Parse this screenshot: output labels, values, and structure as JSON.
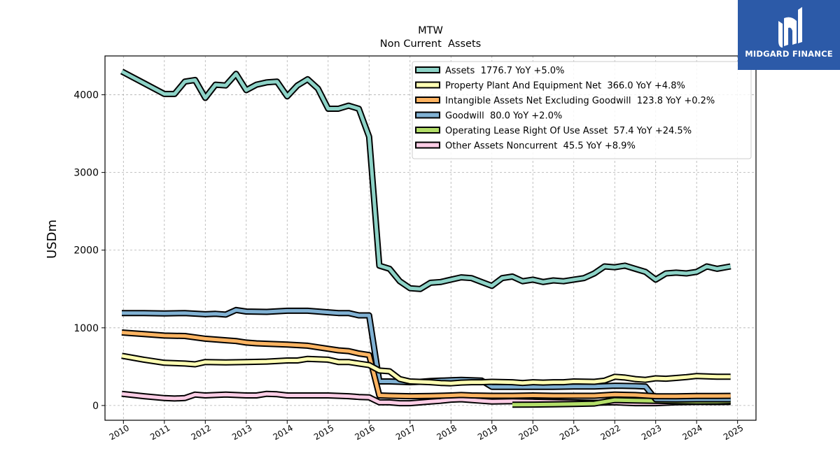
{
  "logo": {
    "brand": "MIDGARD FINANCE"
  },
  "chart_data": {
    "type": "line",
    "title": "MTW",
    "subtitle": "Non Current  Assets",
    "xlabel": "",
    "ylabel": "USDm",
    "xlim": [
      2009.55,
      2025.45
    ],
    "ylim": [
      -190,
      4500
    ],
    "xticks": [
      2010,
      2011,
      2012,
      2013,
      2014,
      2015,
      2016,
      2017,
      2018,
      2019,
      2020,
      2021,
      2022,
      2023,
      2024,
      2025
    ],
    "yticks": [
      0,
      1000,
      2000,
      3000,
      4000
    ],
    "grid": true,
    "legend_position": "top-right",
    "series": [
      {
        "name": "Assets  1776.7 YoY +5.0%",
        "color": "#8dd3c7",
        "points": [
          [
            2009.96,
            4300
          ],
          [
            2010.5,
            4150
          ],
          [
            2011.0,
            4010
          ],
          [
            2011.25,
            4010
          ],
          [
            2011.5,
            4170
          ],
          [
            2011.75,
            4190
          ],
          [
            2012.0,
            3960
          ],
          [
            2012.25,
            4130
          ],
          [
            2012.5,
            4120
          ],
          [
            2012.75,
            4270
          ],
          [
            2013.0,
            4060
          ],
          [
            2013.25,
            4130
          ],
          [
            2013.5,
            4160
          ],
          [
            2013.75,
            4170
          ],
          [
            2014.0,
            3980
          ],
          [
            2014.25,
            4120
          ],
          [
            2014.5,
            4200
          ],
          [
            2014.75,
            4080
          ],
          [
            2015.0,
            3820
          ],
          [
            2015.25,
            3820
          ],
          [
            2015.5,
            3860
          ],
          [
            2015.75,
            3820
          ],
          [
            2016.0,
            3460
          ],
          [
            2016.25,
            1800
          ],
          [
            2016.5,
            1760
          ],
          [
            2016.75,
            1600
          ],
          [
            2017.0,
            1510
          ],
          [
            2017.25,
            1500
          ],
          [
            2017.5,
            1580
          ],
          [
            2017.75,
            1590
          ],
          [
            2018.0,
            1620
          ],
          [
            2018.25,
            1650
          ],
          [
            2018.5,
            1640
          ],
          [
            2018.75,
            1590
          ],
          [
            2019.0,
            1540
          ],
          [
            2019.25,
            1640
          ],
          [
            2019.5,
            1660
          ],
          [
            2019.75,
            1600
          ],
          [
            2020.0,
            1620
          ],
          [
            2020.25,
            1590
          ],
          [
            2020.5,
            1610
          ],
          [
            2020.75,
            1600
          ],
          [
            2021.0,
            1620
          ],
          [
            2021.25,
            1640
          ],
          [
            2021.5,
            1700
          ],
          [
            2021.75,
            1790
          ],
          [
            2022.0,
            1780
          ],
          [
            2022.25,
            1800
          ],
          [
            2022.5,
            1760
          ],
          [
            2022.75,
            1720
          ],
          [
            2023.0,
            1620
          ],
          [
            2023.25,
            1700
          ],
          [
            2023.5,
            1710
          ],
          [
            2023.75,
            1700
          ],
          [
            2024.0,
            1720
          ],
          [
            2024.25,
            1790
          ],
          [
            2024.5,
            1760
          ],
          [
            2024.83,
            1790
          ]
        ]
      },
      {
        "name": "Property Plant And Equipment Net  366.0 YoY +4.8%",
        "color": "#ffffb3",
        "points": [
          [
            2009.96,
            640
          ],
          [
            2010.5,
            590
          ],
          [
            2011.0,
            550
          ],
          [
            2011.5,
            540
          ],
          [
            2011.75,
            530
          ],
          [
            2012.0,
            560
          ],
          [
            2012.5,
            555
          ],
          [
            2013.0,
            560
          ],
          [
            2013.5,
            565
          ],
          [
            2014.0,
            580
          ],
          [
            2014.25,
            580
          ],
          [
            2014.5,
            600
          ],
          [
            2015.0,
            590
          ],
          [
            2015.25,
            560
          ],
          [
            2015.5,
            560
          ],
          [
            2015.75,
            540
          ],
          [
            2016.0,
            520
          ],
          [
            2016.25,
            450
          ],
          [
            2016.5,
            440
          ],
          [
            2016.75,
            340
          ],
          [
            2017.0,
            310
          ],
          [
            2017.5,
            300
          ],
          [
            2017.75,
            290
          ],
          [
            2018.0,
            285
          ],
          [
            2018.25,
            295
          ],
          [
            2018.5,
            300
          ],
          [
            2018.75,
            300
          ],
          [
            2019.0,
            305
          ],
          [
            2019.5,
            300
          ],
          [
            2019.75,
            290
          ],
          [
            2020.0,
            300
          ],
          [
            2020.25,
            295
          ],
          [
            2020.5,
            300
          ],
          [
            2020.75,
            300
          ],
          [
            2021.0,
            310
          ],
          [
            2021.5,
            305
          ],
          [
            2021.75,
            320
          ],
          [
            2022.0,
            370
          ],
          [
            2022.25,
            360
          ],
          [
            2022.5,
            340
          ],
          [
            2022.75,
            330
          ],
          [
            2023.0,
            350
          ],
          [
            2023.25,
            345
          ],
          [
            2023.5,
            355
          ],
          [
            2023.75,
            365
          ],
          [
            2024.0,
            380
          ],
          [
            2024.25,
            375
          ],
          [
            2024.5,
            370
          ],
          [
            2024.83,
            370
          ]
        ]
      },
      {
        "name": "Intangible Assets Net Excluding Goodwill  123.8 YoY +0.2%",
        "color": "#fdb462",
        "points": [
          [
            2009.96,
            940
          ],
          [
            2010.5,
            920
          ],
          [
            2011.0,
            900
          ],
          [
            2011.5,
            895
          ],
          [
            2012.0,
            860
          ],
          [
            2012.25,
            850
          ],
          [
            2012.5,
            840
          ],
          [
            2012.75,
            830
          ],
          [
            2013.0,
            810
          ],
          [
            2013.25,
            800
          ],
          [
            2013.5,
            795
          ],
          [
            2014.0,
            785
          ],
          [
            2014.5,
            770
          ],
          [
            2015.0,
            730
          ],
          [
            2015.25,
            710
          ],
          [
            2015.5,
            700
          ],
          [
            2015.75,
            670
          ],
          [
            2016.0,
            650
          ],
          [
            2016.25,
            130
          ],
          [
            2016.5,
            125
          ],
          [
            2017.0,
            120
          ],
          [
            2017.5,
            122
          ],
          [
            2018.0,
            130
          ],
          [
            2018.25,
            135
          ],
          [
            2018.5,
            130
          ],
          [
            2019.0,
            125
          ],
          [
            2019.5,
            125
          ],
          [
            2020.0,
            130
          ],
          [
            2020.5,
            125
          ],
          [
            2021.0,
            125
          ],
          [
            2021.5,
            125
          ],
          [
            2022.0,
            140
          ],
          [
            2022.5,
            135
          ],
          [
            2023.0,
            120
          ],
          [
            2023.5,
            118
          ],
          [
            2024.0,
            122
          ],
          [
            2024.5,
            122
          ],
          [
            2024.83,
            124
          ]
        ]
      },
      {
        "name": "Goodwill  80.0 YoY +2.0%",
        "color": "#80b1d3",
        "points": [
          [
            2009.96,
            1190
          ],
          [
            2010.5,
            1190
          ],
          [
            2011.0,
            1185
          ],
          [
            2011.5,
            1190
          ],
          [
            2012.0,
            1175
          ],
          [
            2012.25,
            1180
          ],
          [
            2012.5,
            1170
          ],
          [
            2012.75,
            1230
          ],
          [
            2013.0,
            1210
          ],
          [
            2013.5,
            1205
          ],
          [
            2014.0,
            1220
          ],
          [
            2014.5,
            1220
          ],
          [
            2015.0,
            1200
          ],
          [
            2015.25,
            1190
          ],
          [
            2015.5,
            1190
          ],
          [
            2015.75,
            1160
          ],
          [
            2016.0,
            1160
          ],
          [
            2016.25,
            310
          ],
          [
            2016.5,
            310
          ],
          [
            2016.75,
            305
          ],
          [
            2017.0,
            300
          ],
          [
            2017.25,
            305
          ],
          [
            2017.5,
            315
          ],
          [
            2017.75,
            320
          ],
          [
            2018.0,
            325
          ],
          [
            2018.25,
            330
          ],
          [
            2018.5,
            325
          ],
          [
            2018.75,
            320
          ],
          [
            2019.0,
            240
          ],
          [
            2019.5,
            240
          ],
          [
            2020.0,
            240
          ],
          [
            2020.5,
            240
          ],
          [
            2021.0,
            245
          ],
          [
            2021.5,
            245
          ],
          [
            2022.0,
            255
          ],
          [
            2022.5,
            250
          ],
          [
            2022.75,
            245
          ],
          [
            2023.0,
            80
          ],
          [
            2023.5,
            78
          ],
          [
            2024.0,
            80
          ],
          [
            2024.5,
            80
          ],
          [
            2024.83,
            80
          ]
        ]
      },
      {
        "name": "Operating Lease Right Of Use Asset  57.4 YoY +24.5%",
        "color": "#b3de69",
        "points": [
          [
            2019.5,
            10
          ],
          [
            2020.0,
            12
          ],
          [
            2020.5,
            15
          ],
          [
            2021.0,
            20
          ],
          [
            2021.5,
            25
          ],
          [
            2022.0,
            70
          ],
          [
            2022.5,
            65
          ],
          [
            2023.0,
            60
          ],
          [
            2023.5,
            55
          ],
          [
            2024.0,
            50
          ],
          [
            2024.5,
            52
          ],
          [
            2024.83,
            57
          ]
        ]
      },
      {
        "name": "Other Assets Noncurrent  45.5 YoY +8.9%",
        "color": "#fccde5",
        "points": [
          [
            2009.96,
            150
          ],
          [
            2010.5,
            120
          ],
          [
            2011.0,
            95
          ],
          [
            2011.25,
            90
          ],
          [
            2011.5,
            95
          ],
          [
            2011.75,
            140
          ],
          [
            2012.0,
            130
          ],
          [
            2012.5,
            140
          ],
          [
            2013.0,
            130
          ],
          [
            2013.25,
            130
          ],
          [
            2013.5,
            150
          ],
          [
            2013.75,
            145
          ],
          [
            2014.0,
            130
          ],
          [
            2014.5,
            130
          ],
          [
            2015.0,
            130
          ],
          [
            2015.5,
            120
          ],
          [
            2015.75,
            110
          ],
          [
            2016.0,
            105
          ],
          [
            2016.25,
            40
          ],
          [
            2016.5,
            40
          ],
          [
            2016.75,
            30
          ],
          [
            2017.0,
            30
          ],
          [
            2017.5,
            50
          ],
          [
            2017.75,
            60
          ],
          [
            2018.0,
            75
          ],
          [
            2018.25,
            80
          ],
          [
            2018.5,
            70
          ],
          [
            2018.75,
            60
          ],
          [
            2019.0,
            50
          ],
          [
            2019.5,
            55
          ],
          [
            2020.0,
            50
          ],
          [
            2020.5,
            45
          ],
          [
            2021.0,
            40
          ],
          [
            2021.5,
            35
          ],
          [
            2022.0,
            40
          ],
          [
            2022.5,
            30
          ],
          [
            2023.0,
            30
          ],
          [
            2023.5,
            40
          ],
          [
            2024.0,
            45
          ],
          [
            2024.5,
            44
          ],
          [
            2024.83,
            45
          ]
        ]
      }
    ]
  }
}
